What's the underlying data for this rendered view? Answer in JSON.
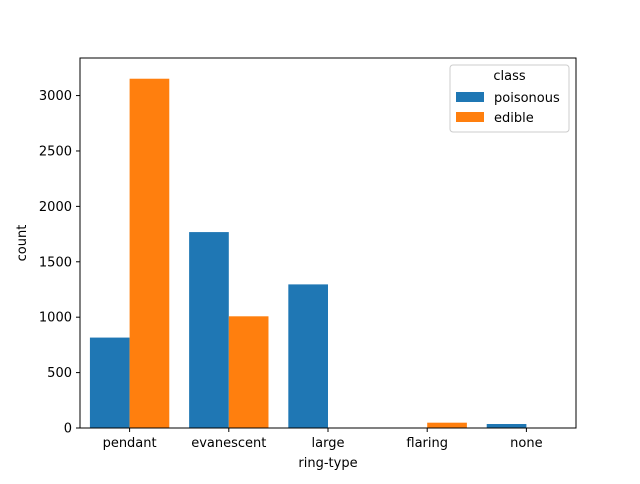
{
  "chart_data": {
    "type": "bar",
    "title": "",
    "xlabel": "ring-type",
    "ylabel": "count",
    "categories": [
      "pendant",
      "evanescent",
      "large",
      "flaring",
      "none"
    ],
    "series": [
      {
        "name": "poisonous",
        "color": "#1f77b4",
        "values": [
          816,
          1768,
          1296,
          0,
          36
        ]
      },
      {
        "name": "edible",
        "color": "#ff7f0e",
        "values": [
          3152,
          1008,
          0,
          48,
          0
        ]
      }
    ],
    "ylim": [
      0,
      3339
    ],
    "yticks": [
      0,
      500,
      1000,
      1500,
      2000,
      2500,
      3000
    ],
    "legend": {
      "title": "class",
      "placement": "top-right"
    },
    "grid": false
  }
}
